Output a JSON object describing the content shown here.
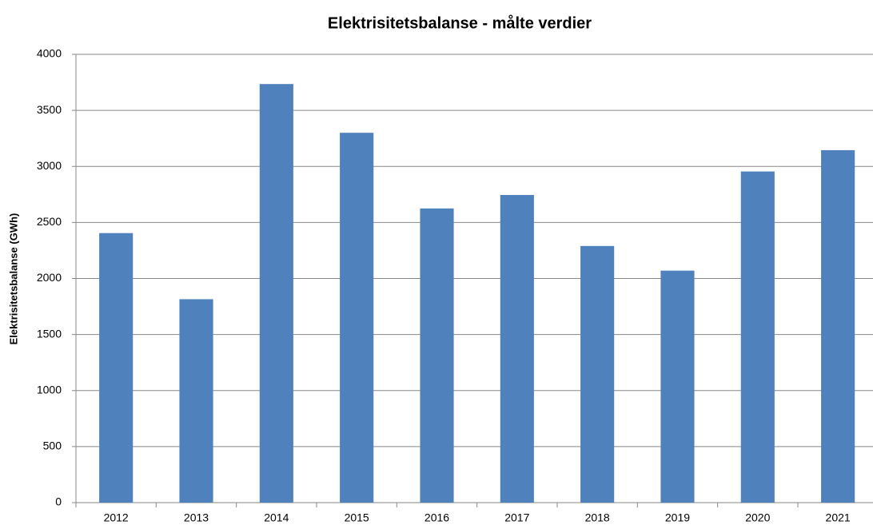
{
  "chart_data": {
    "type": "bar",
    "title": "Elektrisitetsbalanse - målte verdier",
    "y_label": "Elektrisitetsbalanse (GWh)",
    "categories": [
      "2012",
      "2013",
      "2014",
      "2015",
      "2016",
      "2017",
      "2018",
      "2019",
      "2020",
      "2021"
    ],
    "values": [
      2405,
      1815,
      3735,
      3300,
      2625,
      2745,
      2290,
      2070,
      2955,
      3145
    ],
    "color": "#4f81bd",
    "ylim": [
      0,
      4000
    ],
    "yticks": [
      0,
      500,
      1000,
      1500,
      2000,
      2500,
      3000,
      3500,
      4000
    ],
    "grid": true
  }
}
